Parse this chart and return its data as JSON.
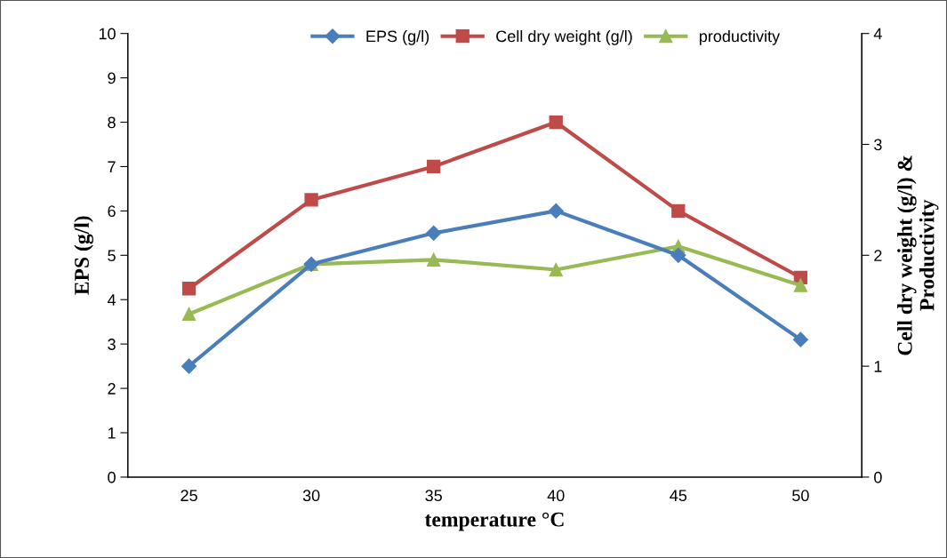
{
  "chart_data": {
    "type": "line",
    "xlabel": "temperature °C",
    "ylabel": "EPS (g/l)",
    "y2label": "Cell dry weight (g/l) &\nProductivity",
    "categories": [
      "25",
      "30",
      "35",
      "40",
      "45",
      "50"
    ],
    "series": [
      {
        "name": "EPS (g/l)",
        "color": "#4a7ebb",
        "marker": "diamond",
        "values": [
          2.5,
          4.8,
          5.5,
          6.0,
          5.0,
          3.1
        ]
      },
      {
        "name": "Cell dry weight (g/l)",
        "color": "#be4b48",
        "marker": "square",
        "axis": "y2",
        "values": [
          1.7,
          2.5,
          2.8,
          3.2,
          2.4,
          1.8
        ]
      },
      {
        "name": "productivity",
        "color": "#98b954",
        "marker": "triangle",
        "axis": "y2",
        "values": [
          1.47,
          1.92,
          1.96,
          1.87,
          2.08,
          1.73
        ]
      }
    ],
    "ylim": [
      0,
      10
    ],
    "yticks": [
      0,
      1,
      2,
      3,
      4,
      5,
      6,
      7,
      8,
      9,
      10
    ],
    "y2lim": [
      0,
      4
    ],
    "y2ticks": [
      0,
      1,
      2,
      3,
      4
    ],
    "legend": "top",
    "grid": false
  }
}
